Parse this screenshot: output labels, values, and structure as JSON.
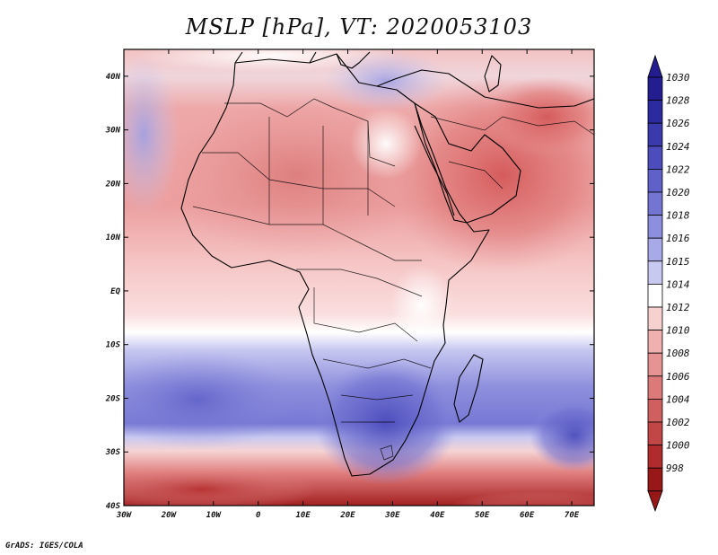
{
  "title": "MSLP [hPa], VT: 2020053103",
  "credit": "GrADS: IGES/COLA",
  "axes": {
    "lon_labels": [
      "30W",
      "20W",
      "10W",
      "0",
      "10E",
      "20E",
      "30E",
      "40E",
      "50E",
      "60E",
      "70E"
    ],
    "lat_labels": [
      "40N",
      "30N",
      "20N",
      "10N",
      "EQ",
      "10S",
      "20S",
      "30S",
      "40S"
    ]
  },
  "colorbar": {
    "levels": [
      "1030",
      "1028",
      "1026",
      "1024",
      "1022",
      "1020",
      "1018",
      "1016",
      "1015",
      "1014",
      "1012",
      "1010",
      "1008",
      "1006",
      "1004",
      "1002",
      "1000",
      "998"
    ],
    "colors": [
      "#231d8f",
      "#2b2a9e",
      "#3b3aac",
      "#4c4cbc",
      "#5f60c8",
      "#7475d3",
      "#8d8edd",
      "#a8a9e7",
      "#c8c9f1",
      "#ffffff",
      "#f7d0d0",
      "#efb0b0",
      "#e69393",
      "#dc7a7a",
      "#d06060",
      "#c24646",
      "#b02c2c",
      "#981818"
    ]
  },
  "chart_data": {
    "type": "heatmap",
    "title": "MSLP [hPa], VT: 2020053103",
    "variable": "Mean sea level pressure",
    "units": "hPa",
    "valid_time": "2020053103",
    "lon_range": [
      -30,
      75
    ],
    "lat_range": [
      -40,
      45
    ],
    "xticks": [
      "30W",
      "20W",
      "10W",
      "0",
      "10E",
      "20E",
      "30E",
      "40E",
      "50E",
      "60E",
      "70E"
    ],
    "yticks": [
      "40N",
      "30N",
      "20N",
      "10N",
      "EQ",
      "10S",
      "20S",
      "30S",
      "40S"
    ],
    "color_levels_hpa": [
      998,
      1000,
      1002,
      1004,
      1006,
      1008,
      1010,
      1012,
      1014,
      1015,
      1016,
      1018,
      1020,
      1022,
      1024,
      1026,
      1028,
      1030
    ],
    "regions": [
      {
        "name": "Sahara / North Africa",
        "approx_hpa": 1008
      },
      {
        "name": "Arabian Peninsula / Iran",
        "approx_hpa": 1004
      },
      {
        "name": "Central Africa / Equator",
        "approx_hpa": 1012
      },
      {
        "name": "Southern Africa interior",
        "approx_hpa": 1020
      },
      {
        "name": "South Atlantic subtropics",
        "approx_hpa": 1022
      },
      {
        "name": "Southern Ocean near 40S",
        "approx_hpa": 1000
      }
    ]
  }
}
